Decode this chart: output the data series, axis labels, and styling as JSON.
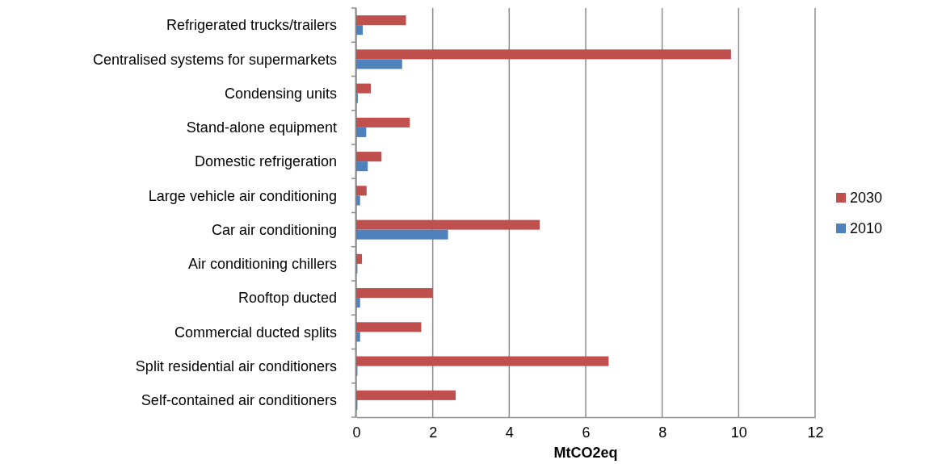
{
  "chart_data": {
    "type": "bar",
    "orientation": "horizontal",
    "xlabel": "MtCO2eq",
    "categories": [
      "Refrigerated trucks/trailers",
      "Centralised systems for supermarkets",
      "Condensing units",
      "Stand-alone equipment",
      "Domestic refrigeration",
      "Large vehicle air conditioning",
      "Car air conditioning",
      "Air conditioning chillers",
      "Rooftop ducted",
      "Commercial ducted splits",
      "Split residential air conditioners",
      "Self-contained air conditioners"
    ],
    "series": [
      {
        "name": "2030",
        "color": "#c0504d",
        "values": [
          1.3,
          9.8,
          0.38,
          1.4,
          0.66,
          0.27,
          4.8,
          0.15,
          2.0,
          1.7,
          6.6,
          2.6
        ]
      },
      {
        "name": "2010",
        "color": "#4f81bd",
        "values": [
          0.17,
          1.2,
          0.04,
          0.26,
          0.3,
          0.1,
          2.4,
          0.03,
          0.1,
          0.1,
          0.03,
          0.03
        ]
      }
    ],
    "xlim": [
      0,
      12
    ],
    "xticks": [
      0,
      2,
      4,
      6,
      8,
      10,
      12
    ],
    "grid": "x",
    "legend": "right"
  }
}
